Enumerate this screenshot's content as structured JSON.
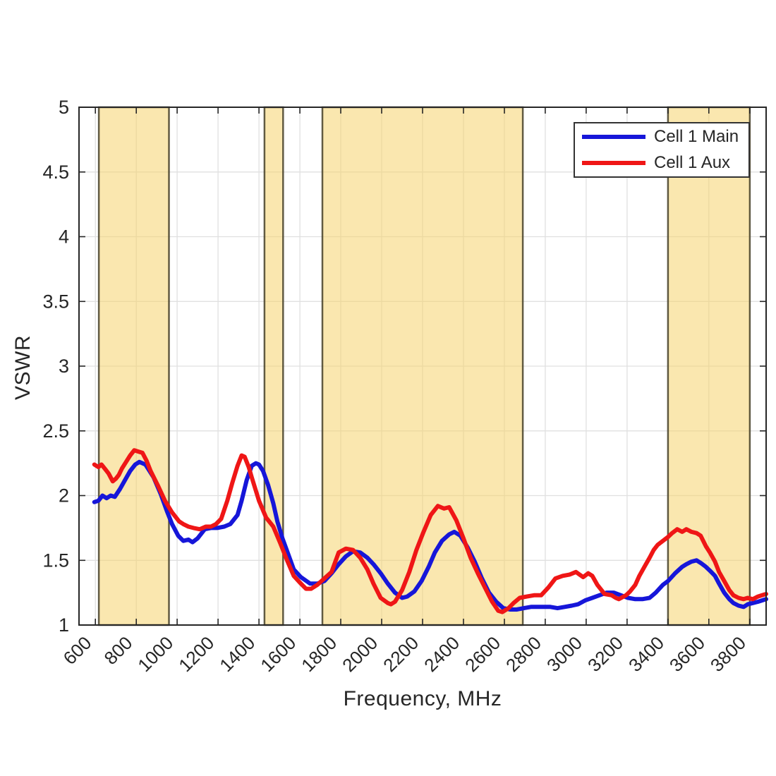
{
  "chart_data": {
    "type": "line",
    "title": "",
    "xlabel": "Frequency, MHz",
    "ylabel": "VSWR",
    "xlim": [
      520,
      3880
    ],
    "ylim": [
      1,
      5
    ],
    "x_ticks": [
      600,
      800,
      1000,
      1200,
      1400,
      1600,
      1800,
      2000,
      2200,
      2400,
      2600,
      2800,
      3000,
      3200,
      3400,
      3600,
      3800
    ],
    "y_ticks": [
      1,
      1.5,
      2,
      2.5,
      3,
      3.5,
      4,
      4.5,
      5
    ],
    "grid": true,
    "legend_position": "top-right",
    "colors": {
      "band_fill": "#f6d36e",
      "band_edge": "#453f28",
      "grid": "#e0e0e0",
      "axis": "#262626",
      "text": "#262626"
    },
    "highlight_bands_mhz": [
      [
        617,
        960
      ],
      [
        1427,
        1518
      ],
      [
        1710,
        2690
      ],
      [
        3400,
        3800
      ]
    ],
    "series": [
      {
        "name": "Cell 1 Main",
        "color": "#1616d9",
        "points": [
          [
            595,
            1.95
          ],
          [
            615,
            1.96
          ],
          [
            635,
            2.0
          ],
          [
            655,
            1.98
          ],
          [
            675,
            2.0
          ],
          [
            695,
            1.99
          ],
          [
            720,
            2.05
          ],
          [
            745,
            2.12
          ],
          [
            770,
            2.19
          ],
          [
            795,
            2.24
          ],
          [
            815,
            2.26
          ],
          [
            845,
            2.24
          ],
          [
            885,
            2.14
          ],
          [
            920,
            2.01
          ],
          [
            950,
            1.88
          ],
          [
            975,
            1.78
          ],
          [
            1005,
            1.69
          ],
          [
            1030,
            1.65
          ],
          [
            1055,
            1.66
          ],
          [
            1075,
            1.64
          ],
          [
            1100,
            1.67
          ],
          [
            1135,
            1.74
          ],
          [
            1165,
            1.75
          ],
          [
            1195,
            1.75
          ],
          [
            1230,
            1.76
          ],
          [
            1260,
            1.78
          ],
          [
            1295,
            1.85
          ],
          [
            1315,
            1.96
          ],
          [
            1340,
            2.12
          ],
          [
            1365,
            2.23
          ],
          [
            1385,
            2.25
          ],
          [
            1400,
            2.24
          ],
          [
            1420,
            2.19
          ],
          [
            1445,
            2.08
          ],
          [
            1470,
            1.94
          ],
          [
            1490,
            1.8
          ],
          [
            1515,
            1.67
          ],
          [
            1540,
            1.56
          ],
          [
            1570,
            1.43
          ],
          [
            1605,
            1.37
          ],
          [
            1650,
            1.32
          ],
          [
            1685,
            1.32
          ],
          [
            1720,
            1.34
          ],
          [
            1755,
            1.4
          ],
          [
            1790,
            1.47
          ],
          [
            1825,
            1.53
          ],
          [
            1860,
            1.57
          ],
          [
            1895,
            1.56
          ],
          [
            1930,
            1.52
          ],
          [
            1960,
            1.47
          ],
          [
            1995,
            1.4
          ],
          [
            2030,
            1.32
          ],
          [
            2065,
            1.25
          ],
          [
            2100,
            1.21
          ],
          [
            2125,
            1.22
          ],
          [
            2160,
            1.26
          ],
          [
            2195,
            1.34
          ],
          [
            2230,
            1.45
          ],
          [
            2260,
            1.56
          ],
          [
            2295,
            1.65
          ],
          [
            2330,
            1.7
          ],
          [
            2355,
            1.72
          ],
          [
            2385,
            1.69
          ],
          [
            2420,
            1.6
          ],
          [
            2455,
            1.49
          ],
          [
            2490,
            1.36
          ],
          [
            2525,
            1.25
          ],
          [
            2560,
            1.18
          ],
          [
            2595,
            1.13
          ],
          [
            2630,
            1.12
          ],
          [
            2660,
            1.12
          ],
          [
            2695,
            1.13
          ],
          [
            2730,
            1.14
          ],
          [
            2760,
            1.14
          ],
          [
            2790,
            1.14
          ],
          [
            2825,
            1.14
          ],
          [
            2860,
            1.13
          ],
          [
            2895,
            1.14
          ],
          [
            2930,
            1.15
          ],
          [
            2960,
            1.16
          ],
          [
            2995,
            1.19
          ],
          [
            3030,
            1.21
          ],
          [
            3065,
            1.23
          ],
          [
            3100,
            1.25
          ],
          [
            3135,
            1.25
          ],
          [
            3170,
            1.23
          ],
          [
            3205,
            1.21
          ],
          [
            3240,
            1.2
          ],
          [
            3275,
            1.2
          ],
          [
            3310,
            1.21
          ],
          [
            3340,
            1.25
          ],
          [
            3375,
            1.31
          ],
          [
            3400,
            1.34
          ],
          [
            3435,
            1.4
          ],
          [
            3470,
            1.45
          ],
          [
            3490,
            1.47
          ],
          [
            3515,
            1.49
          ],
          [
            3540,
            1.5
          ],
          [
            3560,
            1.48
          ],
          [
            3585,
            1.45
          ],
          [
            3605,
            1.42
          ],
          [
            3630,
            1.38
          ],
          [
            3650,
            1.32
          ],
          [
            3675,
            1.25
          ],
          [
            3700,
            1.2
          ],
          [
            3720,
            1.17
          ],
          [
            3745,
            1.15
          ],
          [
            3770,
            1.14
          ],
          [
            3790,
            1.16
          ],
          [
            3815,
            1.17
          ],
          [
            3840,
            1.18
          ],
          [
            3860,
            1.19
          ],
          [
            3880,
            1.2
          ]
        ]
      },
      {
        "name": "Cell 1 Aux",
        "color": "#ef1616",
        "points": [
          [
            595,
            2.24
          ],
          [
            615,
            2.22
          ],
          [
            630,
            2.24
          ],
          [
            650,
            2.2
          ],
          [
            665,
            2.17
          ],
          [
            685,
            2.11
          ],
          [
            700,
            2.13
          ],
          [
            715,
            2.16
          ],
          [
            730,
            2.21
          ],
          [
            750,
            2.26
          ],
          [
            770,
            2.31
          ],
          [
            790,
            2.35
          ],
          [
            810,
            2.34
          ],
          [
            830,
            2.33
          ],
          [
            850,
            2.27
          ],
          [
            870,
            2.19
          ],
          [
            905,
            2.08
          ],
          [
            940,
            1.96
          ],
          [
            975,
            1.87
          ],
          [
            1010,
            1.8
          ],
          [
            1030,
            1.78
          ],
          [
            1055,
            1.76
          ],
          [
            1080,
            1.75
          ],
          [
            1110,
            1.74
          ],
          [
            1140,
            1.76
          ],
          [
            1165,
            1.76
          ],
          [
            1190,
            1.78
          ],
          [
            1215,
            1.82
          ],
          [
            1245,
            1.96
          ],
          [
            1270,
            2.1
          ],
          [
            1295,
            2.23
          ],
          [
            1315,
            2.31
          ],
          [
            1330,
            2.3
          ],
          [
            1350,
            2.22
          ],
          [
            1365,
            2.14
          ],
          [
            1400,
            1.96
          ],
          [
            1435,
            1.83
          ],
          [
            1470,
            1.76
          ],
          [
            1505,
            1.63
          ],
          [
            1540,
            1.49
          ],
          [
            1570,
            1.38
          ],
          [
            1605,
            1.32
          ],
          [
            1630,
            1.28
          ],
          [
            1655,
            1.28
          ],
          [
            1685,
            1.31
          ],
          [
            1720,
            1.36
          ],
          [
            1755,
            1.41
          ],
          [
            1790,
            1.56
          ],
          [
            1825,
            1.59
          ],
          [
            1860,
            1.58
          ],
          [
            1895,
            1.52
          ],
          [
            1930,
            1.43
          ],
          [
            1960,
            1.32
          ],
          [
            1995,
            1.21
          ],
          [
            2030,
            1.17
          ],
          [
            2045,
            1.16
          ],
          [
            2065,
            1.18
          ],
          [
            2100,
            1.27
          ],
          [
            2135,
            1.41
          ],
          [
            2170,
            1.58
          ],
          [
            2205,
            1.72
          ],
          [
            2240,
            1.85
          ],
          [
            2275,
            1.92
          ],
          [
            2305,
            1.9
          ],
          [
            2330,
            1.91
          ],
          [
            2365,
            1.81
          ],
          [
            2400,
            1.67
          ],
          [
            2435,
            1.52
          ],
          [
            2470,
            1.4
          ],
          [
            2505,
            1.29
          ],
          [
            2540,
            1.18
          ],
          [
            2570,
            1.11
          ],
          [
            2590,
            1.1
          ],
          [
            2620,
            1.13
          ],
          [
            2645,
            1.17
          ],
          [
            2675,
            1.21
          ],
          [
            2710,
            1.22
          ],
          [
            2745,
            1.23
          ],
          [
            2780,
            1.23
          ],
          [
            2815,
            1.29
          ],
          [
            2850,
            1.36
          ],
          [
            2885,
            1.38
          ],
          [
            2920,
            1.39
          ],
          [
            2950,
            1.41
          ],
          [
            2985,
            1.37
          ],
          [
            3010,
            1.4
          ],
          [
            3030,
            1.38
          ],
          [
            3055,
            1.31
          ],
          [
            3090,
            1.24
          ],
          [
            3125,
            1.23
          ],
          [
            3145,
            1.21
          ],
          [
            3160,
            1.2
          ],
          [
            3195,
            1.23
          ],
          [
            3215,
            1.26
          ],
          [
            3240,
            1.31
          ],
          [
            3260,
            1.38
          ],
          [
            3285,
            1.45
          ],
          [
            3310,
            1.52
          ],
          [
            3330,
            1.58
          ],
          [
            3350,
            1.62
          ],
          [
            3375,
            1.65
          ],
          [
            3400,
            1.68
          ],
          [
            3420,
            1.71
          ],
          [
            3445,
            1.74
          ],
          [
            3470,
            1.72
          ],
          [
            3490,
            1.74
          ],
          [
            3515,
            1.72
          ],
          [
            3540,
            1.71
          ],
          [
            3560,
            1.69
          ],
          [
            3585,
            1.61
          ],
          [
            3605,
            1.56
          ],
          [
            3630,
            1.49
          ],
          [
            3650,
            1.41
          ],
          [
            3675,
            1.34
          ],
          [
            3700,
            1.27
          ],
          [
            3720,
            1.23
          ],
          [
            3745,
            1.21
          ],
          [
            3770,
            1.2
          ],
          [
            3790,
            1.21
          ],
          [
            3815,
            1.2
          ],
          [
            3840,
            1.22
          ],
          [
            3860,
            1.23
          ],
          [
            3880,
            1.24
          ]
        ]
      }
    ]
  }
}
